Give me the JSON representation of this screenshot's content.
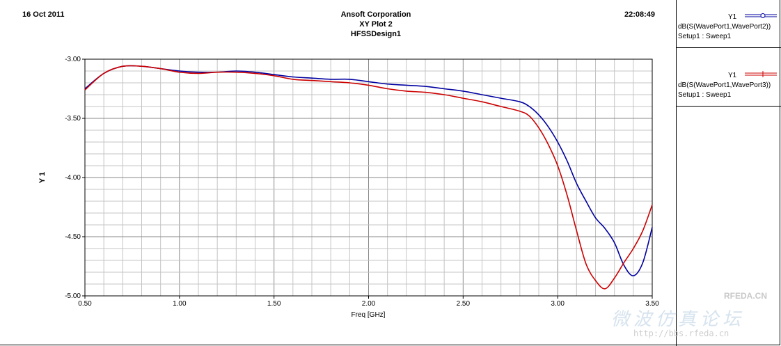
{
  "header": {
    "date": "16 Oct 2011",
    "company": "Ansoft Corporation",
    "plot_name": "XY Plot 2",
    "design": "HFSSDesign1",
    "time": "22:08:49"
  },
  "legend": [
    {
      "axis": "Y1",
      "expr": "dB(S(WavePort1,WavePort2))",
      "setup": "Setup1 : Sweep1",
      "color": "#0000a0",
      "marker": "circle"
    },
    {
      "axis": "Y1",
      "expr": "dB(S(WavePort1,WavePort3))",
      "setup": "Setup1 : Sweep1",
      "color": "#cc0000",
      "marker": "plus"
    }
  ],
  "watermark": {
    "brand": "RFEDA.CN",
    "chinese": "微波仿真论坛",
    "url": "http://bbs.rfeda.cn"
  },
  "chart_data": {
    "type": "line",
    "title": "XY Plot 2",
    "xlabel": "Freq [GHz]",
    "ylabel": "Y 1",
    "xlim": [
      0.5,
      3.5
    ],
    "ylim": [
      -5.0,
      -3.0
    ],
    "xticks": [
      "0.50",
      "1.00",
      "1.50",
      "2.00",
      "2.50",
      "3.00",
      "3.50"
    ],
    "yticks": [
      "-3.00",
      "-3.50",
      "-4.00",
      "-4.50",
      "-5.00"
    ],
    "grid": true,
    "legend_position": "right",
    "series": [
      {
        "name": "dB(S(WavePort1,WavePort2))",
        "color": "#0000a0",
        "x": [
          0.5,
          0.6,
          0.7,
          0.8,
          0.9,
          1.0,
          1.1,
          1.2,
          1.3,
          1.4,
          1.5,
          1.6,
          1.7,
          1.8,
          1.9,
          2.0,
          2.1,
          2.2,
          2.3,
          2.4,
          2.5,
          2.6,
          2.7,
          2.8,
          2.85,
          2.9,
          2.95,
          3.0,
          3.05,
          3.1,
          3.15,
          3.2,
          3.25,
          3.3,
          3.35,
          3.4,
          3.45,
          3.5
        ],
        "y": [
          -3.25,
          -3.12,
          -3.06,
          -3.06,
          -3.08,
          -3.1,
          -3.11,
          -3.11,
          -3.1,
          -3.11,
          -3.13,
          -3.15,
          -3.16,
          -3.17,
          -3.17,
          -3.19,
          -3.21,
          -3.22,
          -3.23,
          -3.25,
          -3.27,
          -3.3,
          -3.33,
          -3.36,
          -3.4,
          -3.47,
          -3.57,
          -3.7,
          -3.86,
          -4.05,
          -4.2,
          -4.34,
          -4.43,
          -4.55,
          -4.74,
          -4.83,
          -4.72,
          -4.42
        ]
      },
      {
        "name": "dB(S(WavePort1,WavePort3))",
        "color": "#cc0000",
        "x": [
          0.5,
          0.6,
          0.7,
          0.8,
          0.9,
          1.0,
          1.1,
          1.2,
          1.3,
          1.4,
          1.5,
          1.6,
          1.7,
          1.8,
          1.9,
          2.0,
          2.1,
          2.2,
          2.3,
          2.4,
          2.5,
          2.6,
          2.7,
          2.8,
          2.85,
          2.9,
          2.95,
          3.0,
          3.05,
          3.1,
          3.15,
          3.2,
          3.25,
          3.3,
          3.35,
          3.4,
          3.45,
          3.5
        ],
        "y": [
          -3.26,
          -3.12,
          -3.06,
          -3.06,
          -3.08,
          -3.11,
          -3.12,
          -3.11,
          -3.11,
          -3.12,
          -3.14,
          -3.17,
          -3.18,
          -3.19,
          -3.2,
          -3.22,
          -3.25,
          -3.27,
          -3.28,
          -3.3,
          -3.33,
          -3.36,
          -3.4,
          -3.44,
          -3.48,
          -3.58,
          -3.72,
          -3.9,
          -4.15,
          -4.45,
          -4.73,
          -4.87,
          -4.94,
          -4.85,
          -4.72,
          -4.6,
          -4.45,
          -4.23
        ]
      }
    ]
  }
}
